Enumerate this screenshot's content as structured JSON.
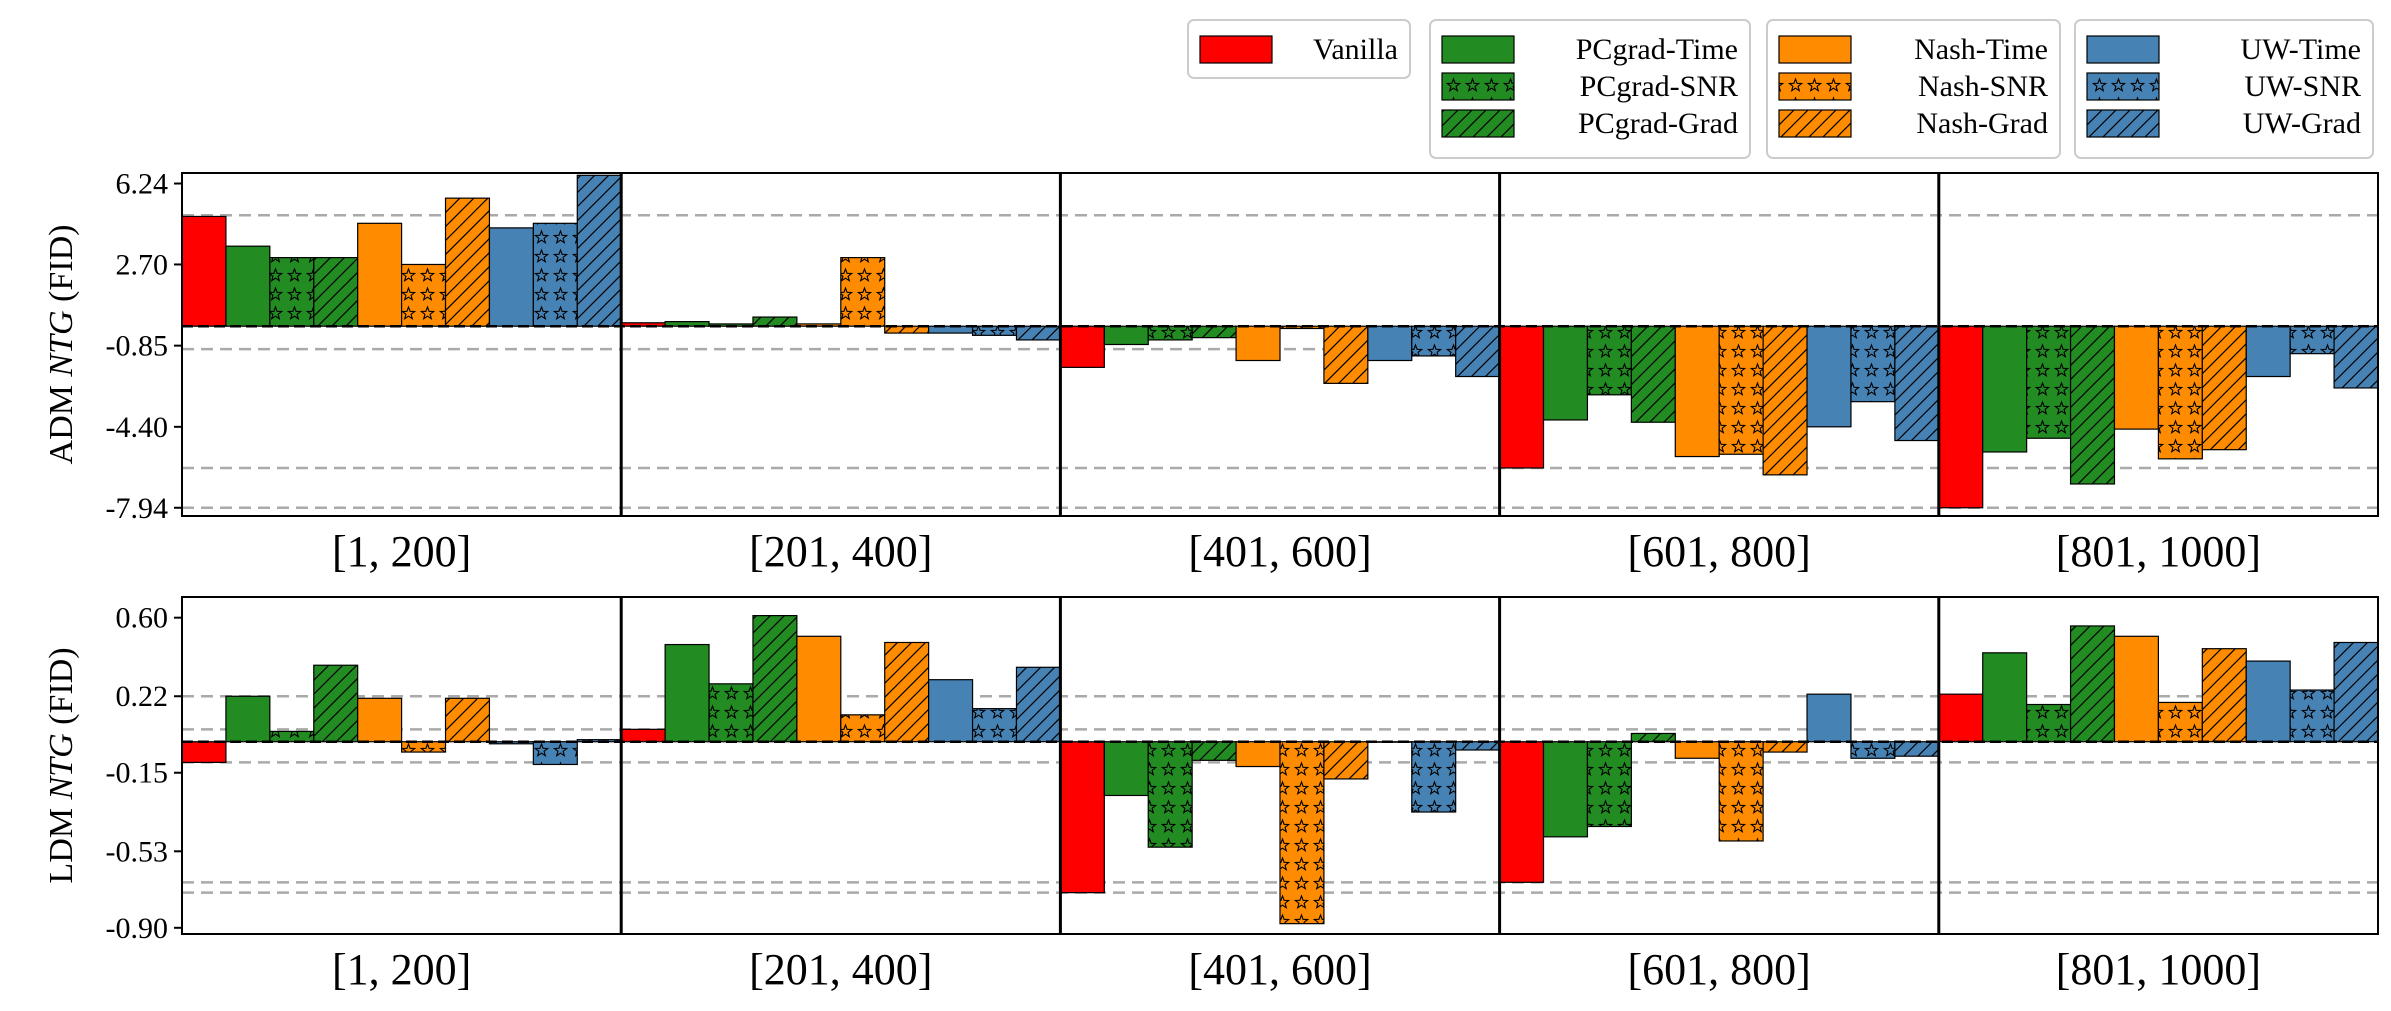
{
  "chart_data": [
    {
      "type": "bar",
      "ylabel_prefix": "ADM ",
      "ylabel_italic": "NTG",
      "ylabel_suffix": " (FID)",
      "ylim": [
        -8.3,
        6.7
      ],
      "yticks": [
        6.24,
        2.7,
        -0.85,
        -4.4,
        -7.94
      ],
      "ytick_labels": [
        "6.24",
        "2.70",
        "-0.85",
        "-4.40",
        "-7.94"
      ],
      "reference_lines": [
        4.85,
        -1.0,
        -6.2,
        -7.94
      ],
      "categories": [
        "[1, 200]",
        "[201, 400]",
        "[401, 600]",
        "[601, 800]",
        "[801, 1000]"
      ],
      "series": [
        {
          "name": "Vanilla",
          "values": [
            4.8,
            0.15,
            -1.8,
            -6.2,
            -7.94
          ]
        },
        {
          "name": "PCgrad-Time",
          "values": [
            3.5,
            0.2,
            -0.8,
            -4.1,
            -5.5
          ]
        },
        {
          "name": "PCgrad-SNR",
          "values": [
            3.0,
            0.1,
            -0.6,
            -3.0,
            -4.9
          ]
        },
        {
          "name": "PCgrad-Grad",
          "values": [
            3.0,
            0.4,
            -0.5,
            -4.2,
            -6.9
          ]
        },
        {
          "name": "Nash-Time",
          "values": [
            4.5,
            0.1,
            -1.5,
            -5.7,
            -4.5
          ]
        },
        {
          "name": "Nash-SNR",
          "values": [
            2.7,
            3.0,
            -0.1,
            -5.6,
            -5.8
          ]
        },
        {
          "name": "Nash-Grad",
          "values": [
            5.6,
            -0.3,
            -2.5,
            -6.5,
            -5.4
          ]
        },
        {
          "name": "UW-Time",
          "values": [
            4.3,
            -0.3,
            -1.5,
            -4.4,
            -2.2
          ]
        },
        {
          "name": "UW-SNR",
          "values": [
            4.5,
            -0.4,
            -1.3,
            -3.3,
            -1.2
          ]
        },
        {
          "name": "UW-Grad",
          "values": [
            6.6,
            -0.6,
            -2.2,
            -5.0,
            -2.7
          ]
        }
      ]
    },
    {
      "type": "bar",
      "ylabel_prefix": "LDM ",
      "ylabel_italic": "NTG",
      "ylabel_suffix": " (FID)",
      "ylim": [
        -0.93,
        0.7
      ],
      "yticks": [
        0.6,
        0.22,
        -0.15,
        -0.53,
        -0.9
      ],
      "ytick_labels": [
        "0.60",
        "0.22",
        "-0.15",
        "-0.53",
        "-0.90"
      ],
      "reference_lines": [
        0.22,
        0.06,
        -0.1,
        -0.68,
        -0.73
      ],
      "categories": [
        "[1, 200]",
        "[201, 400]",
        "[401, 600]",
        "[601, 800]",
        "[801, 1000]"
      ],
      "series": [
        {
          "name": "Vanilla",
          "values": [
            -0.1,
            0.06,
            -0.73,
            -0.68,
            0.23
          ]
        },
        {
          "name": "PCgrad-Time",
          "values": [
            0.22,
            0.47,
            -0.26,
            -0.46,
            0.43
          ]
        },
        {
          "name": "PCgrad-SNR",
          "values": [
            0.05,
            0.28,
            -0.51,
            -0.41,
            0.18
          ]
        },
        {
          "name": "PCgrad-Grad",
          "values": [
            0.37,
            0.61,
            -0.09,
            0.04,
            0.56
          ]
        },
        {
          "name": "Nash-Time",
          "values": [
            0.21,
            0.51,
            -0.12,
            -0.08,
            0.51
          ]
        },
        {
          "name": "Nash-SNR",
          "values": [
            -0.05,
            0.13,
            -0.88,
            -0.48,
            0.19
          ]
        },
        {
          "name": "Nash-Grad",
          "values": [
            0.21,
            0.48,
            -0.18,
            -0.05,
            0.45
          ]
        },
        {
          "name": "UW-Time",
          "values": [
            -0.01,
            0.3,
            0.0,
            0.23,
            0.39
          ]
        },
        {
          "name": "UW-SNR",
          "values": [
            -0.11,
            0.16,
            -0.34,
            -0.08,
            0.25
          ]
        },
        {
          "name": "UW-Grad",
          "values": [
            0.01,
            0.36,
            -0.04,
            -0.07,
            0.48
          ]
        }
      ]
    }
  ],
  "legend": {
    "groups": [
      [
        "Vanilla"
      ],
      [
        "PCgrad-Time",
        "PCgrad-SNR",
        "PCgrad-Grad"
      ],
      [
        "Nash-Time",
        "Nash-SNR",
        "Nash-Grad"
      ],
      [
        "UW-Time",
        "UW-SNR",
        "UW-Grad"
      ]
    ]
  },
  "colors": {
    "Vanilla": "#ff0000",
    "PCgrad": "#228b22",
    "Nash": "#ff8c00",
    "UW": "#4682b4",
    "reference_line": "#aaaaaa"
  },
  "hatches": {
    "Time": "none",
    "SNR": "stars",
    "Grad": "diagonal"
  }
}
